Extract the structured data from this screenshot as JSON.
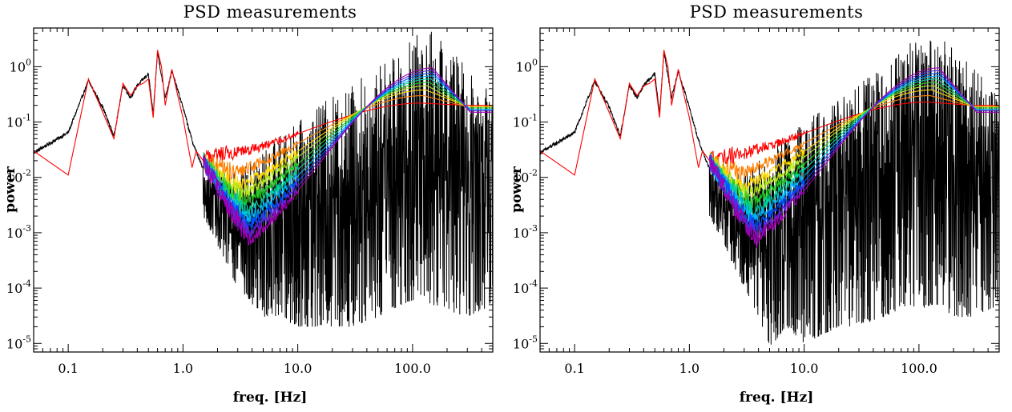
{
  "chart_data": [
    {
      "type": "line",
      "title": "PSD measurements",
      "xlabel": "freq. [Hz]",
      "ylabel": "power",
      "xscale": "log",
      "yscale": "log",
      "xlim": [
        0.05,
        500
      ],
      "ylim": [
        7e-06,
        5
      ],
      "xticks": [
        {
          "value": 0.1,
          "label": "0.1"
        },
        {
          "value": 1,
          "label": "1.0"
        },
        {
          "value": 10,
          "label": "10.0"
        },
        {
          "value": 100,
          "label": "100.0"
        }
      ],
      "yticks": [
        {
          "value": 1e-05,
          "mantissa": "10",
          "exp": "-5"
        },
        {
          "value": 0.0001,
          "mantissa": "10",
          "exp": "-4"
        },
        {
          "value": 0.001,
          "mantissa": "10",
          "exp": "-3"
        },
        {
          "value": 0.01,
          "mantissa": "10",
          "exp": "-2"
        },
        {
          "value": 0.1,
          "mantissa": "10",
          "exp": "-1"
        },
        {
          "value": 1,
          "mantissa": "10",
          "exp": "0"
        }
      ],
      "raw_psd": {
        "color": "#000000",
        "envelope_upper": {
          "x": [
            0.05,
            0.1,
            0.15,
            0.2,
            0.25,
            0.3,
            0.35,
            0.4,
            0.5,
            0.55,
            0.6,
            0.7,
            0.8,
            1.0,
            1.2,
            1.5,
            2,
            3,
            4,
            5,
            7,
            10,
            20,
            30,
            50,
            80,
            100,
            130,
            150,
            200,
            300,
            500
          ],
          "y": [
            0.03,
            0.07,
            0.6,
            0.2,
            0.06,
            0.5,
            0.3,
            0.5,
            0.8,
            0.15,
            2.0,
            0.3,
            0.9,
            0.2,
            0.05,
            0.015,
            0.012,
            0.012,
            0.02,
            0.03,
            0.06,
            0.1,
            0.3,
            0.5,
            1.0,
            2.5,
            3.5,
            4.5,
            4.5,
            2.5,
            1.0,
            0.3
          ]
        },
        "envelope_lower": {
          "x": [
            1.5,
            2,
            3,
            4,
            5,
            7,
            10,
            20,
            30,
            50,
            80,
            100,
            130,
            150,
            200,
            300,
            500
          ],
          "y": [
            0.002,
            0.0006,
            0.0001,
            5e-05,
            3e-05,
            3e-05,
            2e-05,
            2e-05,
            2e-05,
            3e-05,
            5e-05,
            6e-05,
            5e-05,
            5e-05,
            4e-05,
            3e-05,
            5e-05
          ]
        }
      },
      "model_fits": [
        {
          "color": "#ff0000",
          "trough_x": 2.5,
          "trough_y": 0.025,
          "peak_x": 120,
          "peak_y": 0.22,
          "plateau_y": 0.2
        },
        {
          "color": "#ff7f00",
          "trough_x": 2.8,
          "trough_y": 0.012,
          "peak_x": 125,
          "peak_y": 0.3,
          "plateau_y": 0.19
        },
        {
          "color": "#ffd700",
          "trough_x": 3.0,
          "trough_y": 0.007,
          "peak_x": 130,
          "peak_y": 0.38,
          "plateau_y": 0.19
        },
        {
          "color": "#b5e61d",
          "trough_x": 3.2,
          "trough_y": 0.005,
          "peak_x": 135,
          "peak_y": 0.45,
          "plateau_y": 0.18
        },
        {
          "color": "#22cc22",
          "trough_x": 3.4,
          "trough_y": 0.0035,
          "peak_x": 140,
          "peak_y": 0.52,
          "plateau_y": 0.18
        },
        {
          "color": "#00d2a0",
          "trough_x": 3.5,
          "trough_y": 0.0025,
          "peak_x": 145,
          "peak_y": 0.6,
          "plateau_y": 0.17
        },
        {
          "color": "#00b4ff",
          "trough_x": 3.6,
          "trough_y": 0.0018,
          "peak_x": 150,
          "peak_y": 0.68,
          "plateau_y": 0.17
        },
        {
          "color": "#0050ff",
          "trough_x": 3.7,
          "trough_y": 0.0013,
          "peak_x": 150,
          "peak_y": 0.76,
          "plateau_y": 0.16
        },
        {
          "color": "#5a28dc",
          "trough_x": 3.8,
          "trough_y": 0.001,
          "peak_x": 150,
          "peak_y": 0.85,
          "plateau_y": 0.16
        },
        {
          "color": "#a000b4",
          "trough_x": 3.9,
          "trough_y": 0.0008,
          "peak_x": 150,
          "peak_y": 0.95,
          "plateau_y": 0.15
        }
      ],
      "lowfreq_fit": {
        "color": "#ff0000",
        "x": [
          0.05,
          0.1,
          0.15,
          0.2,
          0.25,
          0.3,
          0.35,
          0.4,
          0.45,
          0.5,
          0.55,
          0.6,
          0.65,
          0.7,
          0.8,
          0.9,
          1.0,
          1.1,
          1.2,
          1.3,
          1.5
        ],
        "y": [
          0.03,
          0.011,
          0.6,
          0.15,
          0.05,
          0.5,
          0.3,
          0.45,
          0.5,
          0.6,
          0.12,
          2.0,
          1.0,
          0.2,
          0.9,
          0.3,
          0.12,
          0.04,
          0.015,
          0.03,
          0.02
        ]
      }
    },
    {
      "type": "line",
      "title": "PSD measurements",
      "xlabel": "freq. [Hz]",
      "ylabel": "power",
      "xscale": "log",
      "yscale": "log",
      "xlim": [
        0.05,
        500
      ],
      "ylim": [
        7e-06,
        5
      ],
      "xticks": [
        {
          "value": 0.1,
          "label": "0.1"
        },
        {
          "value": 1,
          "label": "1.0"
        },
        {
          "value": 10,
          "label": "10.0"
        },
        {
          "value": 100,
          "label": "100.0"
        }
      ],
      "yticks": [
        {
          "value": 1e-05,
          "mantissa": "10",
          "exp": "-5"
        },
        {
          "value": 0.0001,
          "mantissa": "10",
          "exp": "-4"
        },
        {
          "value": 0.001,
          "mantissa": "10",
          "exp": "-3"
        },
        {
          "value": 0.01,
          "mantissa": "10",
          "exp": "-2"
        },
        {
          "value": 0.1,
          "mantissa": "10",
          "exp": "-1"
        },
        {
          "value": 1,
          "mantissa": "10",
          "exp": "0"
        }
      ],
      "raw_psd": {
        "color": "#000000",
        "envelope_upper": {
          "x": [
            0.05,
            0.1,
            0.15,
            0.2,
            0.25,
            0.3,
            0.35,
            0.4,
            0.5,
            0.55,
            0.6,
            0.7,
            0.8,
            1.0,
            1.2,
            1.5,
            2,
            3,
            4,
            5,
            7,
            10,
            20,
            30,
            50,
            80,
            100,
            130,
            150,
            200,
            300,
            500
          ],
          "y": [
            0.03,
            0.07,
            0.6,
            0.2,
            0.06,
            0.5,
            0.3,
            0.5,
            0.8,
            0.15,
            2.0,
            0.3,
            0.9,
            0.2,
            0.05,
            0.015,
            0.012,
            0.012,
            0.02,
            0.03,
            0.06,
            0.1,
            0.3,
            0.5,
            1.0,
            2.5,
            3.5,
            4.0,
            4.0,
            2.5,
            1.0,
            0.3
          ]
        },
        "envelope_lower": {
          "x": [
            1.5,
            2,
            3,
            4,
            5,
            7,
            10,
            20,
            30,
            50,
            80,
            100,
            130,
            150,
            200,
            300,
            500
          ],
          "y": [
            0.002,
            0.0006,
            0.0001,
            3e-05,
            8e-06,
            2e-05,
            1e-05,
            2e-05,
            2e-05,
            3e-05,
            5e-05,
            4e-05,
            5e-05,
            5e-05,
            3e-05,
            3e-05,
            5e-05
          ]
        }
      },
      "model_fits": [
        {
          "color": "#ff0000",
          "trough_x": 2.5,
          "trough_y": 0.025,
          "peak_x": 120,
          "peak_y": 0.23,
          "plateau_y": 0.2
        },
        {
          "color": "#ff7f00",
          "trough_x": 2.8,
          "trough_y": 0.012,
          "peak_x": 125,
          "peak_y": 0.3,
          "plateau_y": 0.19
        },
        {
          "color": "#ffd700",
          "trough_x": 3.0,
          "trough_y": 0.007,
          "peak_x": 130,
          "peak_y": 0.38,
          "plateau_y": 0.19
        },
        {
          "color": "#b5e61d",
          "trough_x": 3.2,
          "trough_y": 0.005,
          "peak_x": 135,
          "peak_y": 0.45,
          "plateau_y": 0.18
        },
        {
          "color": "#22cc22",
          "trough_x": 3.4,
          "trough_y": 0.0035,
          "peak_x": 140,
          "peak_y": 0.52,
          "plateau_y": 0.18
        },
        {
          "color": "#00d2a0",
          "trough_x": 3.5,
          "trough_y": 0.0025,
          "peak_x": 145,
          "peak_y": 0.6,
          "plateau_y": 0.17
        },
        {
          "color": "#00b4ff",
          "trough_x": 3.6,
          "trough_y": 0.0018,
          "peak_x": 150,
          "peak_y": 0.68,
          "plateau_y": 0.17
        },
        {
          "color": "#0050ff",
          "trough_x": 3.7,
          "trough_y": 0.0013,
          "peak_x": 150,
          "peak_y": 0.76,
          "plateau_y": 0.16
        },
        {
          "color": "#5a28dc",
          "trough_x": 3.8,
          "trough_y": 0.001,
          "peak_x": 150,
          "peak_y": 0.85,
          "plateau_y": 0.16
        },
        {
          "color": "#a000b4",
          "trough_x": 3.9,
          "trough_y": 0.0008,
          "peak_x": 150,
          "peak_y": 0.95,
          "plateau_y": 0.15
        }
      ],
      "lowfreq_fit": {
        "color": "#ff0000",
        "x": [
          0.05,
          0.1,
          0.15,
          0.2,
          0.25,
          0.3,
          0.35,
          0.4,
          0.45,
          0.5,
          0.55,
          0.6,
          0.65,
          0.7,
          0.8,
          0.9,
          1.0,
          1.1,
          1.2,
          1.3,
          1.5
        ],
        "y": [
          0.03,
          0.011,
          0.6,
          0.15,
          0.05,
          0.5,
          0.3,
          0.45,
          0.5,
          0.6,
          0.12,
          2.0,
          1.0,
          0.2,
          0.9,
          0.3,
          0.12,
          0.04,
          0.015,
          0.03,
          0.02
        ]
      }
    }
  ]
}
